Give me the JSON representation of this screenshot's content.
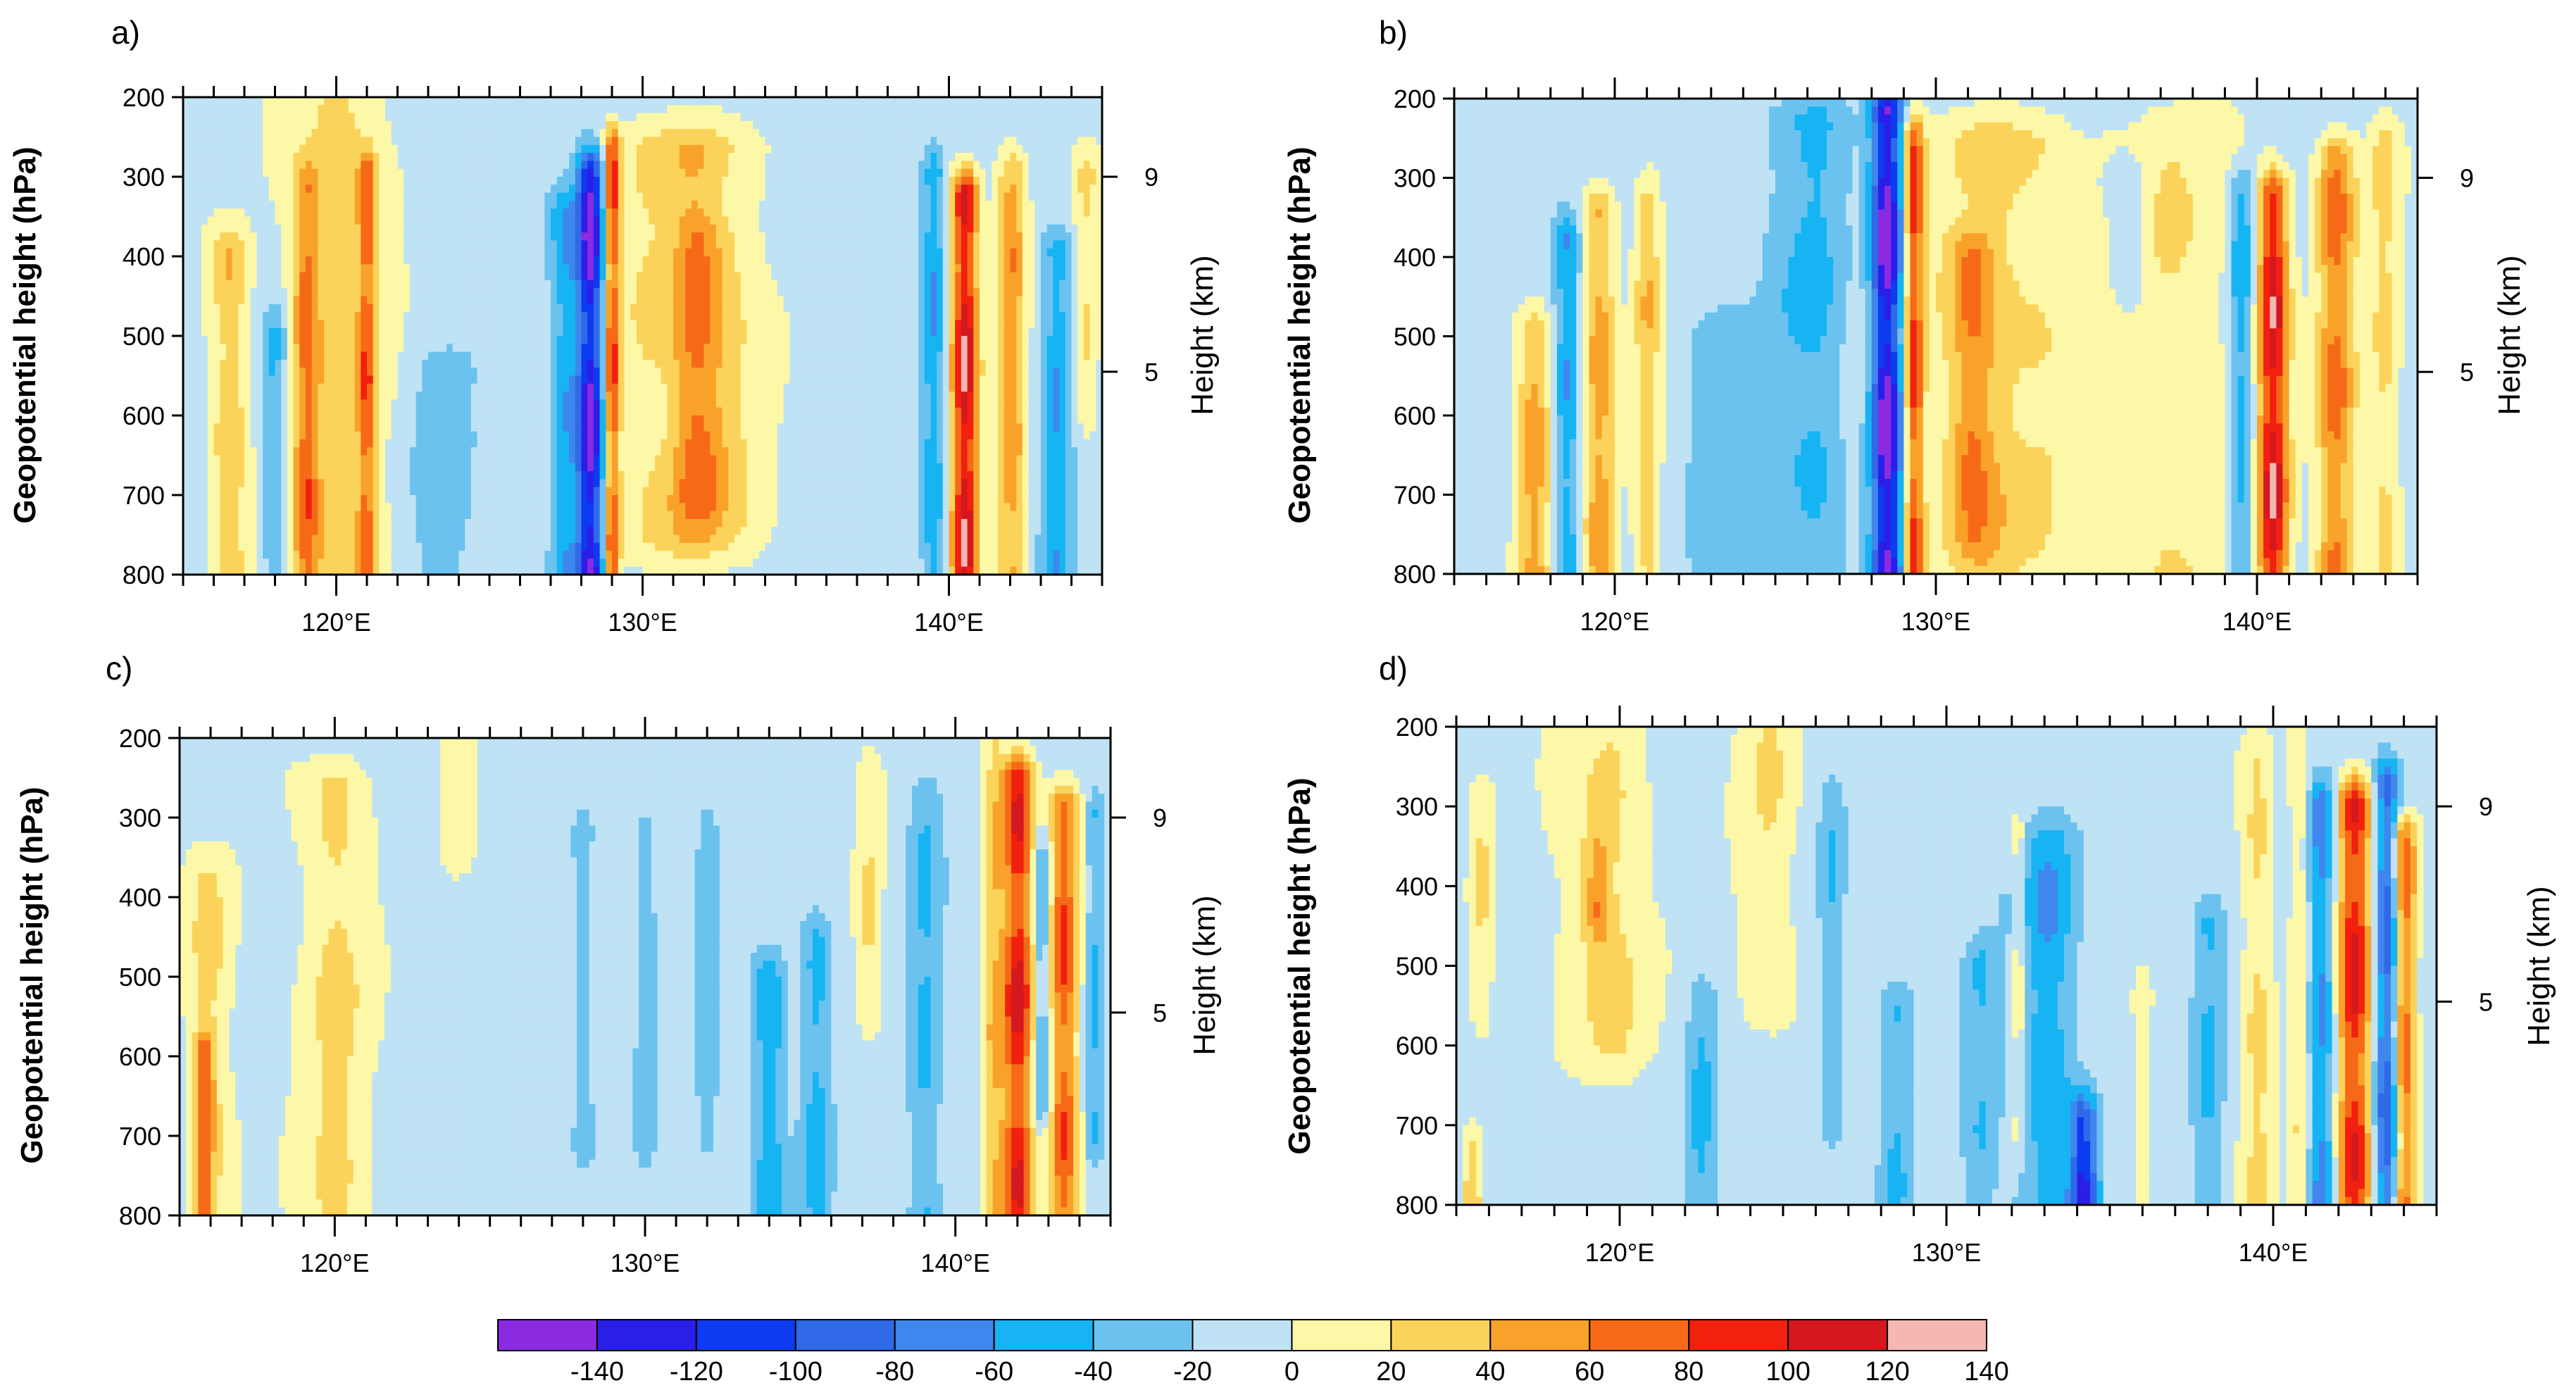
{
  "chart_data": [
    {
      "type": "heatmap",
      "panel_label": "a)",
      "ylabel": "Geopotential height (hPa)",
      "ylabel_right": "Height (km)",
      "y_ticks": [
        200,
        300,
        400,
        500,
        600,
        700,
        800
      ],
      "y_tick_labels": [
        "200",
        "300",
        "400",
        "500",
        "600",
        "700",
        "800"
      ],
      "y_right_ticks": [
        9,
        5
      ],
      "y_right_tick_labels": [
        "9",
        "5"
      ],
      "x_ticks": [
        120,
        130,
        140
      ],
      "x_tick_labels": [
        "120°E",
        "130°E",
        "140°E"
      ],
      "xlim": [
        115,
        145
      ],
      "ylim": [
        800,
        200
      ],
      "features": [
        {
          "c": 120.0,
          "w": 1.6,
          "amp": 35,
          "top": 200,
          "bot": 800
        },
        {
          "c": 119.0,
          "w": 0.4,
          "amp": 60,
          "top": 320,
          "bot": 800
        },
        {
          "c": 116.5,
          "w": 0.6,
          "amp": 45,
          "top": 400,
          "bot": 800
        },
        {
          "c": 121.0,
          "w": 0.3,
          "amp": 55,
          "top": 300,
          "bot": 800
        },
        {
          "c": 118.0,
          "w": 0.4,
          "amp": -40,
          "top": 500,
          "bot": 800
        },
        {
          "c": 123.5,
          "w": 1.0,
          "amp": -25,
          "top": 550,
          "bot": 800
        },
        {
          "c": 128.3,
          "w": 0.45,
          "amp": -120,
          "top": 300,
          "bot": 800
        },
        {
          "c": 129.0,
          "w": 0.25,
          "amp": 90,
          "top": 270,
          "bot": 800
        },
        {
          "c": 131.5,
          "w": 2.2,
          "amp": 40,
          "top": 270,
          "bot": 750
        },
        {
          "c": 132.0,
          "w": 0.9,
          "amp": 35,
          "top": 380,
          "bot": 700
        },
        {
          "c": 127.5,
          "w": 0.5,
          "amp": -45,
          "top": 350,
          "bot": 800
        },
        {
          "c": 140.5,
          "w": 0.45,
          "amp": 110,
          "top": 330,
          "bot": 800
        },
        {
          "c": 139.5,
          "w": 0.4,
          "amp": -50,
          "top": 300,
          "bot": 800
        },
        {
          "c": 142.0,
          "w": 0.5,
          "amp": 55,
          "top": 300,
          "bot": 800
        },
        {
          "c": 143.5,
          "w": 0.5,
          "amp": -45,
          "top": 400,
          "bot": 800
        },
        {
          "c": 144.5,
          "w": 0.4,
          "amp": 30,
          "top": 300,
          "bot": 600
        }
      ]
    },
    {
      "type": "heatmap",
      "panel_label": "b)",
      "ylabel": "Geopotential height (hPa)",
      "ylabel_right": "Height (km)",
      "y_ticks": [
        200,
        300,
        400,
        500,
        600,
        700,
        800
      ],
      "y_tick_labels": [
        "200",
        "300",
        "400",
        "500",
        "600",
        "700",
        "800"
      ],
      "y_right_ticks": [
        9,
        5
      ],
      "y_right_tick_labels": [
        "9",
        "5"
      ],
      "x_ticks": [
        120,
        130,
        140
      ],
      "x_tick_labels": [
        "120°E",
        "130°E",
        "140°E"
      ],
      "xlim": [
        115,
        145
      ],
      "ylim": [
        800,
        200
      ],
      "features": [
        {
          "c": 119.5,
          "w": 0.5,
          "amp": 55,
          "top": 350,
          "bot": 800
        },
        {
          "c": 121.0,
          "w": 0.4,
          "amp": 45,
          "top": 330,
          "bot": 800
        },
        {
          "c": 117.5,
          "w": 0.6,
          "amp": 50,
          "top": 500,
          "bot": 800
        },
        {
          "c": 118.5,
          "w": 0.4,
          "amp": -50,
          "top": 380,
          "bot": 800
        },
        {
          "c": 123.5,
          "w": 1.2,
          "amp": -25,
          "top": 500,
          "bot": 800
        },
        {
          "c": 126.0,
          "w": 1.2,
          "amp": -35,
          "top": 230,
          "bot": 800
        },
        {
          "c": 128.5,
          "w": 0.5,
          "amp": -130,
          "top": 220,
          "bot": 800
        },
        {
          "c": 129.3,
          "w": 0.3,
          "amp": 90,
          "top": 250,
          "bot": 800
        },
        {
          "c": 132.0,
          "w": 2.2,
          "amp": 35,
          "top": 260,
          "bot": 800
        },
        {
          "c": 131.0,
          "w": 0.7,
          "amp": 40,
          "top": 400,
          "bot": 750
        },
        {
          "c": 137.5,
          "w": 2.2,
          "amp": 25,
          "top": 250,
          "bot": 800
        },
        {
          "c": 136.0,
          "w": 0.6,
          "amp": -25,
          "top": 320,
          "bot": 430
        },
        {
          "c": 140.5,
          "w": 0.5,
          "amp": 100,
          "top": 330,
          "bot": 800
        },
        {
          "c": 139.5,
          "w": 0.4,
          "amp": -55,
          "top": 320,
          "bot": 800
        },
        {
          "c": 142.5,
          "w": 0.6,
          "amp": 70,
          "top": 280,
          "bot": 800
        },
        {
          "c": 144.0,
          "w": 0.5,
          "amp": 30,
          "top": 260,
          "bot": 800
        }
      ]
    },
    {
      "type": "heatmap",
      "panel_label": "c)",
      "ylabel": "Geopotential height  (hPa)",
      "ylabel_right": "Height (km)",
      "y_ticks": [
        200,
        300,
        400,
        500,
        600,
        700,
        800
      ],
      "y_tick_labels": [
        "200",
        "300",
        "400",
        "500",
        "600",
        "700",
        "800"
      ],
      "y_right_ticks": [
        9,
        5
      ],
      "y_right_tick_labels": [
        "9",
        "5"
      ],
      "x_ticks": [
        120,
        130,
        140
      ],
      "x_tick_labels": [
        "120°E",
        "130°E",
        "140°E"
      ],
      "xlim": [
        115,
        145
      ],
      "ylim": [
        800,
        200
      ],
      "features": [
        {
          "c": 120.0,
          "w": 1.2,
          "amp": 30,
          "top": 260,
          "bot": 800
        },
        {
          "c": 116.0,
          "w": 0.8,
          "amp": 30,
          "top": 380,
          "bot": 800
        },
        {
          "c": 115.8,
          "w": 0.3,
          "amp": 55,
          "top": 600,
          "bot": 800
        },
        {
          "c": 124.0,
          "w": 0.5,
          "amp": 22,
          "top": 200,
          "bot": 330
        },
        {
          "c": 128.0,
          "w": 0.35,
          "amp": -25,
          "top": 330,
          "bot": 700
        },
        {
          "c": 130.0,
          "w": 0.35,
          "amp": -25,
          "top": 320,
          "bot": 700
        },
        {
          "c": 132.0,
          "w": 0.35,
          "amp": -25,
          "top": 320,
          "bot": 700
        },
        {
          "c": 134.0,
          "w": 0.6,
          "amp": -40,
          "top": 500,
          "bot": 800
        },
        {
          "c": 135.5,
          "w": 0.5,
          "amp": -35,
          "top": 450,
          "bot": 800
        },
        {
          "c": 137.2,
          "w": 0.4,
          "amp": 25,
          "top": 260,
          "bot": 550
        },
        {
          "c": 139.0,
          "w": 0.6,
          "amp": -30,
          "top": 280,
          "bot": 800
        },
        {
          "c": 142.0,
          "w": 0.5,
          "amp": 110,
          "top": 250,
          "bot": 800
        },
        {
          "c": 143.5,
          "w": 0.45,
          "amp": 90,
          "top": 300,
          "bot": 800
        },
        {
          "c": 142.8,
          "w": 0.3,
          "amp": -45,
          "top": 350,
          "bot": 650
        },
        {
          "c": 141.2,
          "w": 0.3,
          "amp": 40,
          "top": 200,
          "bot": 800
        },
        {
          "c": 144.5,
          "w": 0.3,
          "amp": -35,
          "top": 300,
          "bot": 700
        }
      ]
    },
    {
      "type": "heatmap",
      "panel_label": "d)",
      "ylabel": "Geopotential height (hPa)",
      "ylabel_right": "Height (km)",
      "y_ticks": [
        200,
        300,
        400,
        500,
        600,
        700,
        800
      ],
      "y_tick_labels": [
        "200",
        "300",
        "400",
        "500",
        "600",
        "700",
        "800"
      ],
      "y_right_ticks": [
        9,
        5
      ],
      "y_right_tick_labels": [
        "9",
        "5"
      ],
      "x_ticks": [
        120,
        130,
        140
      ],
      "x_tick_labels": [
        "120°E",
        "130°E",
        "140°E"
      ],
      "xlim": [
        115,
        145
      ],
      "ylim": [
        800,
        200
      ],
      "features": [
        {
          "c": 119.5,
          "w": 1.4,
          "amp": 30,
          "top": 200,
          "bot": 600
        },
        {
          "c": 119.3,
          "w": 0.4,
          "amp": 45,
          "top": 370,
          "bot": 430
        },
        {
          "c": 115.8,
          "w": 0.35,
          "amp": 25,
          "top": 300,
          "bot": 550
        },
        {
          "c": 115.5,
          "w": 0.3,
          "amp": 40,
          "top": 730,
          "bot": 800
        },
        {
          "c": 124.5,
          "w": 0.9,
          "amp": 25,
          "top": 200,
          "bot": 550
        },
        {
          "c": 122.5,
          "w": 0.5,
          "amp": -30,
          "top": 550,
          "bot": 800
        },
        {
          "c": 126.5,
          "w": 0.4,
          "amp": -25,
          "top": 300,
          "bot": 700
        },
        {
          "c": 128.5,
          "w": 0.5,
          "amp": -30,
          "top": 550,
          "bot": 800
        },
        {
          "c": 131.0,
          "w": 0.5,
          "amp": -30,
          "top": 500,
          "bot": 800
        },
        {
          "c": 133.0,
          "w": 1.0,
          "amp": -45,
          "top": 350,
          "bot": 800
        },
        {
          "c": 134.2,
          "w": 0.4,
          "amp": -120,
          "top": 700,
          "bot": 800
        },
        {
          "c": 132.2,
          "w": 0.25,
          "amp": 35,
          "top": 350,
          "bot": 700
        },
        {
          "c": 136.0,
          "w": 0.3,
          "amp": 22,
          "top": 550,
          "bot": 800
        },
        {
          "c": 138.0,
          "w": 0.5,
          "amp": -30,
          "top": 450,
          "bot": 800
        },
        {
          "c": 139.5,
          "w": 0.5,
          "amp": 30,
          "top": 250,
          "bot": 800
        },
        {
          "c": 142.5,
          "w": 0.5,
          "amp": 110,
          "top": 300,
          "bot": 800
        },
        {
          "c": 143.5,
          "w": 0.4,
          "amp": -80,
          "top": 280,
          "bot": 800
        },
        {
          "c": 144.0,
          "w": 0.35,
          "amp": 90,
          "top": 350,
          "bot": 800
        },
        {
          "c": 141.5,
          "w": 0.4,
          "amp": -60,
          "top": 300,
          "bot": 800
        },
        {
          "c": 140.8,
          "w": 0.3,
          "amp": 25,
          "top": 200,
          "bot": 800
        }
      ]
    }
  ],
  "colorbar": {
    "labels": [
      "-140",
      "-120",
      "-100",
      "-80",
      "-60",
      "-40",
      "-20",
      "0",
      "20",
      "40",
      "60",
      "80",
      "100",
      "120",
      "140"
    ],
    "colors": [
      "#8a2be2",
      "#2a1fe6",
      "#0d3bf0",
      "#2f69e8",
      "#3f86ee",
      "#16b4f2",
      "#6cc2ef",
      "#bfe3f4",
      "#fdf8a7",
      "#fcd35a",
      "#f9a22a",
      "#f66a17",
      "#f2200e",
      "#d4181e",
      "#f5b7b1"
    ]
  }
}
